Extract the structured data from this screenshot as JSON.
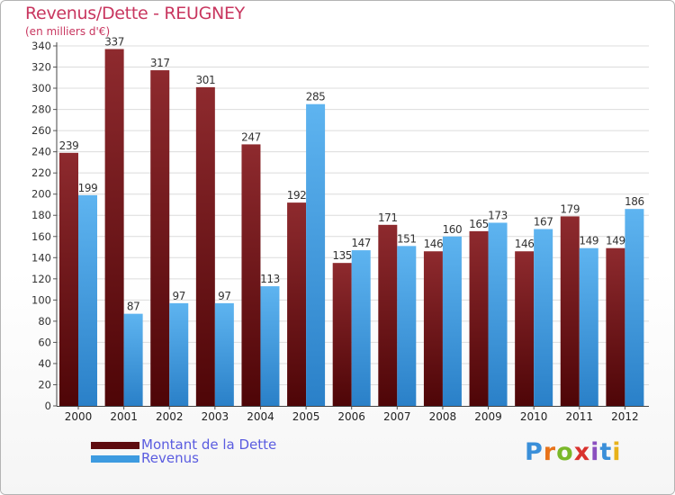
{
  "header": {
    "title": "Revenus/Dette - REUGNEY",
    "unit_label": "(en milliers d'€)"
  },
  "chart_data": {
    "type": "bar",
    "title": "Revenus/Dette - REUGNEY",
    "ylabel": "(en milliers d'€)",
    "xlabel": "",
    "ylim": [
      0,
      340
    ],
    "ytick_step": 20,
    "grid": "horizontal",
    "legend_position": "bottom-left",
    "categories": [
      "2000",
      "2001",
      "2002",
      "2003",
      "2004",
      "2005",
      "2006",
      "2007",
      "2008",
      "2009",
      "2010",
      "2011",
      "2012"
    ],
    "series": [
      {
        "name": "Montant de la Dette",
        "color": "#7b1e22",
        "values": [
          239,
          337,
          317,
          301,
          247,
          192,
          135,
          171,
          146,
          165,
          146,
          179,
          149
        ]
      },
      {
        "name": "Revenus",
        "color": "#4fa6e6",
        "values": [
          199,
          87,
          97,
          97,
          113,
          285,
          147,
          151,
          160,
          173,
          167,
          149,
          186
        ]
      }
    ]
  },
  "legend": {
    "items": [
      {
        "label": "Montant de la Dette",
        "color": "#5e0c10"
      },
      {
        "label": "Revenus",
        "color": "#3d9be0"
      }
    ]
  },
  "brand": {
    "logo_text": "Proxiti",
    "letter_colors": [
      "#3a8fd9",
      "#e8731a",
      "#7ab829",
      "#d9322e",
      "#8a4fbf",
      "#3a8fd9",
      "#e8b21a"
    ]
  }
}
